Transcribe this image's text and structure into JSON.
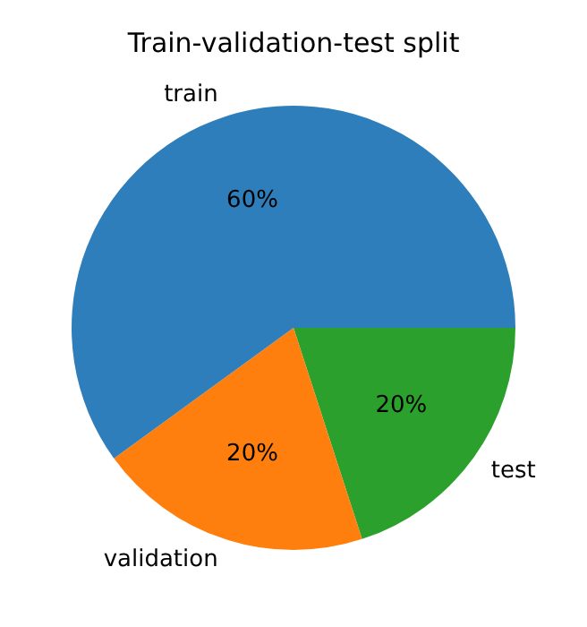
{
  "chart_data": {
    "type": "pie",
    "title": "Train-validation-test split",
    "categories": [
      "train",
      "validation",
      "test"
    ],
    "values": [
      60,
      20,
      20
    ],
    "colors": [
      "#2e7ebb",
      "#ff7f0e",
      "#2ca02c"
    ],
    "value_labels": [
      "60%",
      "20%",
      "20%"
    ]
  }
}
